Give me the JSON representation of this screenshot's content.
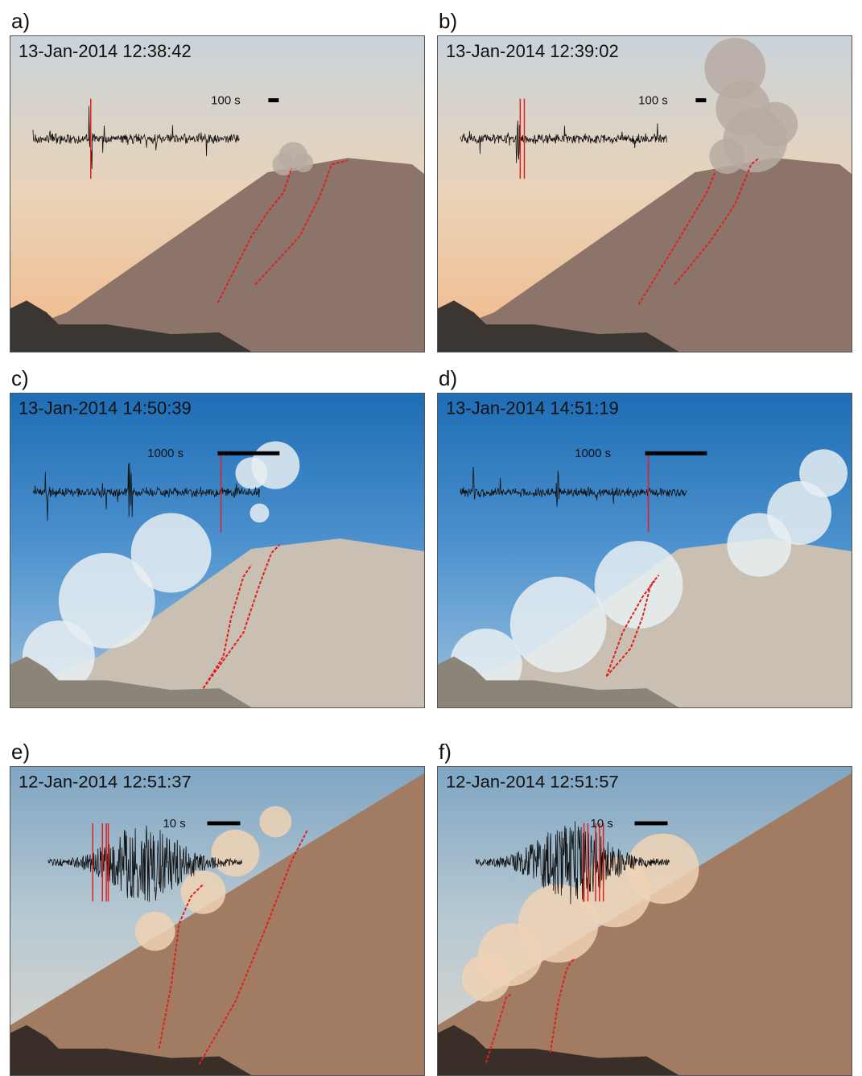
{
  "panels": [
    {
      "label": "a)",
      "timestamp": "13-Jan-2014 12:38:42",
      "scale_label": "100 s"
    },
    {
      "label": "b)",
      "timestamp": "13-Jan-2014 12:39:02",
      "scale_label": "100 s"
    },
    {
      "label": "c)",
      "timestamp": "13-Jan-2014 14:50:39",
      "scale_label": "1000 s"
    },
    {
      "label": "d)",
      "timestamp": "13-Jan-2014 14:51:19",
      "scale_label": "1000 s"
    },
    {
      "label": "e)",
      "timestamp": "12-Jan-2014 12:51:37",
      "scale_label": "10 s"
    },
    {
      "label": "f)",
      "timestamp": "12-Jan-2014 12:51:57",
      "scale_label": "10 s"
    }
  ]
}
